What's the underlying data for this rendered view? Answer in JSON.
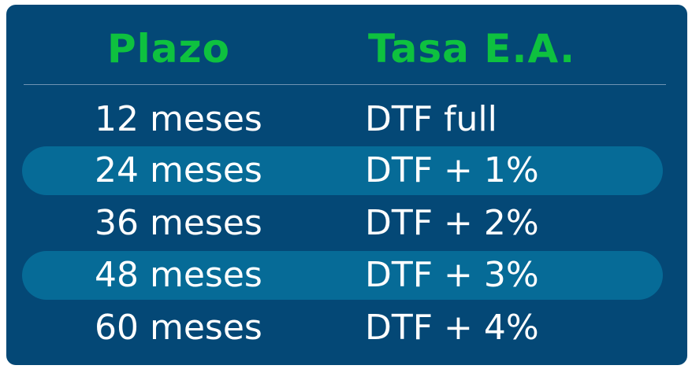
{
  "colors": {
    "background": "#044876",
    "band": "#066b97",
    "header_text": "#0ec13f",
    "body_text": "#ffffff"
  },
  "table": {
    "headers": {
      "term": "Plazo",
      "rate": "Tasa E.A."
    },
    "rows": [
      {
        "term": "12 meses",
        "rate": "DTF full"
      },
      {
        "term": "24 meses",
        "rate": "DTF + 1%"
      },
      {
        "term": "36 meses",
        "rate": "DTF + 2%"
      },
      {
        "term": "48 meses",
        "rate": "DTF + 3%"
      },
      {
        "term": "60 meses",
        "rate": "DTF + 4%"
      }
    ]
  }
}
